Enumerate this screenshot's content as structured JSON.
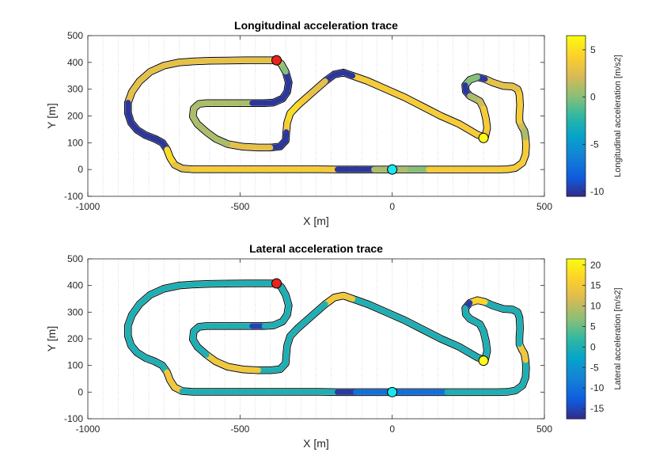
{
  "chart_data": [
    {
      "type": "scatter",
      "title": "Longitudinal acceleration trace",
      "xlabel": "X [m]",
      "ylabel": "Y [m]",
      "xlim": [
        -1000,
        500
      ],
      "ylim": [
        -100,
        500
      ],
      "xticks": [
        "-1000",
        "-500",
        "0",
        "500"
      ],
      "yticks": [
        "-100",
        "0",
        "100",
        "200",
        "300",
        "400",
        "500"
      ],
      "grid": "vertical dotted",
      "colorbar": {
        "label": "Longitudinal acceleration [m/s2]",
        "range": [
          -10.5,
          6.5
        ],
        "ticks": [
          "-10",
          "-5",
          "0",
          "5"
        ]
      },
      "colors_along_track": [
        3,
        3,
        3,
        3,
        3,
        3,
        3,
        3,
        3,
        3,
        3,
        -10,
        -10,
        -10,
        -10,
        -10,
        -10,
        -10,
        5,
        5,
        3,
        3,
        4,
        4,
        4,
        4,
        4,
        4,
        4,
        4,
        -10,
        -10,
        1,
        1,
        0,
        4,
        4,
        4,
        4,
        4,
        4,
        4,
        4,
        4,
        4,
        1,
        1,
        2,
        4,
        4,
        4,
        4,
        3,
        3,
        3,
        3,
        -10,
        0,
        0,
        -10,
        -10,
        1,
        1,
        2,
        4,
        4,
        4,
        4,
        4,
        4,
        4,
        4,
        4,
        4,
        4,
        -10,
        -10,
        -10,
        3,
        3,
        4,
        5,
        5,
        4,
        -10,
        -10,
        -10,
        3,
        3,
        3,
        1,
        1,
        1,
        1,
        1,
        1,
        1,
        1,
        1,
        1,
        1,
        -10,
        -10,
        -10,
        -10,
        -10,
        -10,
        0,
        1,
        1,
        2,
        2,
        2,
        3,
        3,
        3,
        3,
        3,
        3,
        3,
        3,
        3,
        3,
        3,
        3,
        3,
        3,
        3,
        3,
        3
      ],
      "markers": [
        {
          "name": "start",
          "x": -380,
          "y": 408,
          "color": "#e8231d"
        },
        {
          "name": "mid",
          "x": 300,
          "y": 118,
          "color": "#ffff1a"
        },
        {
          "name": "origin",
          "x": 0,
          "y": 0,
          "color": "#1ae6f0"
        }
      ]
    },
    {
      "type": "scatter",
      "title": "Lateral acceleration trace",
      "xlabel": "X [m]",
      "ylabel": "Y [m]",
      "xlim": [
        -1000,
        500
      ],
      "ylim": [
        -100,
        500
      ],
      "xticks": [
        "-1000",
        "-500",
        "0",
        "500"
      ],
      "yticks": [
        "-100",
        "0",
        "100",
        "200",
        "300",
        "400",
        "500"
      ],
      "grid": "vertical dotted",
      "colorbar": {
        "label": "Lateral acceleration [m/s2]",
        "range": [
          -17.5,
          21.5
        ],
        "ticks": [
          "-15",
          "-10",
          "-5",
          "0",
          "5",
          "10",
          "15",
          "20"
        ]
      },
      "colors_along_track": [
        0,
        0,
        0,
        0,
        0,
        0,
        0,
        0,
        0,
        0,
        0,
        0,
        0,
        0,
        0,
        0,
        0,
        0,
        15,
        15,
        15,
        0,
        0,
        0,
        0,
        0,
        0,
        0,
        0,
        0,
        -16,
        -10,
        -10,
        -10,
        -10,
        -10,
        0,
        0,
        0,
        0,
        0,
        0,
        0,
        0,
        0,
        15,
        15,
        15,
        0,
        0,
        0,
        0,
        0,
        0,
        0,
        0,
        17,
        17,
        -16,
        0,
        0,
        0,
        0,
        0,
        0,
        0,
        0,
        0,
        0,
        0,
        0,
        0,
        0,
        0,
        0,
        15,
        15,
        15,
        0,
        0,
        0,
        0,
        0,
        0,
        0,
        0,
        0,
        0,
        15,
        15,
        15,
        15,
        0,
        0,
        0,
        0,
        0,
        0,
        0,
        0,
        0,
        -15,
        0,
        0,
        0,
        0,
        0,
        0,
        0,
        15,
        15,
        15,
        15,
        15,
        15,
        15,
        15,
        15,
        15,
        15,
        10,
        10,
        10,
        10,
        10,
        10,
        10,
        10,
        10,
        10,
        10
      ],
      "markers": [
        {
          "name": "start",
          "x": -380,
          "y": 408,
          "color": "#e8231d"
        },
        {
          "name": "mid",
          "x": 300,
          "y": 118,
          "color": "#ffff1a"
        },
        {
          "name": "origin",
          "x": 0,
          "y": 0,
          "color": "#1ae6f0"
        }
      ]
    }
  ]
}
